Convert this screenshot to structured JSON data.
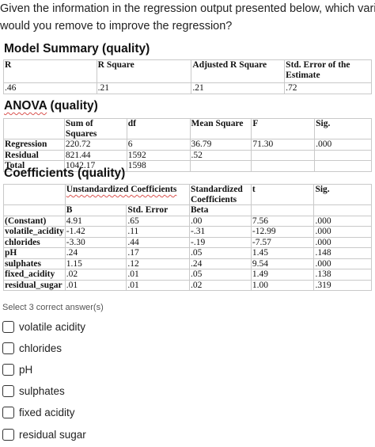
{
  "question": {
    "line1": "Given the information in the regression output presented below, which variable",
    "line2": "would you remove to improve the regression?"
  },
  "model_summary": {
    "title": "Model Summary (quality)",
    "headers": [
      "R",
      "R Square",
      "Adjusted R Square",
      "Std. Error of the Estimate"
    ],
    "values": [
      ".46",
      ".21",
      ".21",
      ".72"
    ]
  },
  "anova": {
    "title_word": "ANOVA",
    "title_rest": " (quality)",
    "headers": [
      "",
      "Sum of Squares",
      "df",
      "Mean Square",
      "F",
      "Sig."
    ],
    "rows": [
      [
        "Regression",
        "220.72",
        "6",
        "36.79",
        "71.30",
        ".000"
      ],
      [
        "Residual",
        "821.44",
        "1592",
        ".52",
        "",
        ""
      ],
      [
        "Total",
        "1042.17",
        "1598",
        "",
        "",
        ""
      ]
    ]
  },
  "coefficients": {
    "title": "Coefficients (quality)",
    "header_unstd": "Unstandardized Coefficients",
    "header_std": "Standardized Coefficients",
    "header_t": "t",
    "header_sig": "Sig.",
    "sub_b": "B",
    "sub_se": "Std. Error",
    "sub_beta": "Beta",
    "rows": [
      [
        "(Constant)",
        "4.91",
        ".65",
        ".00",
        "7.56",
        ".000"
      ],
      [
        "volatile_acidity",
        "-1.42",
        ".11",
        "-.31",
        "-12.99",
        ".000"
      ],
      [
        "chlorides",
        "-3.30",
        ".44",
        "-.19",
        "-7.57",
        ".000"
      ],
      [
        "pH",
        ".24",
        ".17",
        ".05",
        "1.45",
        ".148"
      ],
      [
        "sulphates",
        "1.15",
        ".12",
        ".24",
        "9.54",
        ".000"
      ],
      [
        "fixed_acidity",
        ".02",
        ".01",
        ".05",
        "1.49",
        ".138"
      ],
      [
        "residual_sugar",
        ".01",
        ".01",
        ".02",
        "1.00",
        ".319"
      ]
    ]
  },
  "answers": {
    "instruction": "Select 3 correct answer(s)",
    "options": [
      "volatile acidity",
      "chlorides",
      "pH",
      "sulphates",
      "fixed acidity",
      "residual sugar"
    ]
  }
}
